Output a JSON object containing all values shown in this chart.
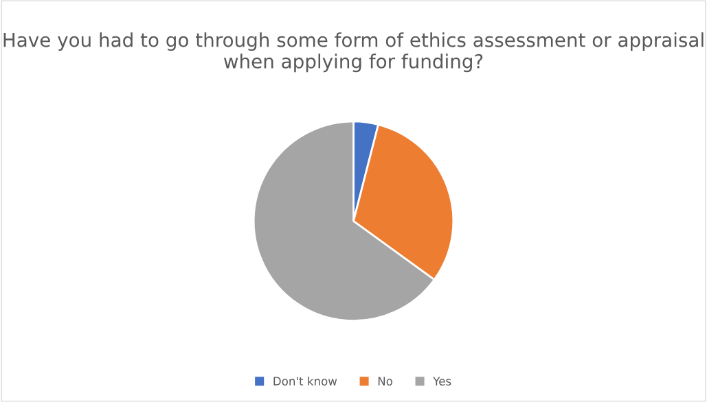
{
  "chart_data": {
    "type": "pie",
    "title": "Have you had to go through some form of ethics assessment or appraisal when applying for funding?",
    "categories": [
      "Don't know",
      "No",
      "Yes"
    ],
    "values": [
      4,
      31,
      65
    ],
    "colors": [
      "#4472c4",
      "#ed7d31",
      "#a5a5a5"
    ],
    "legend": "bottom"
  }
}
